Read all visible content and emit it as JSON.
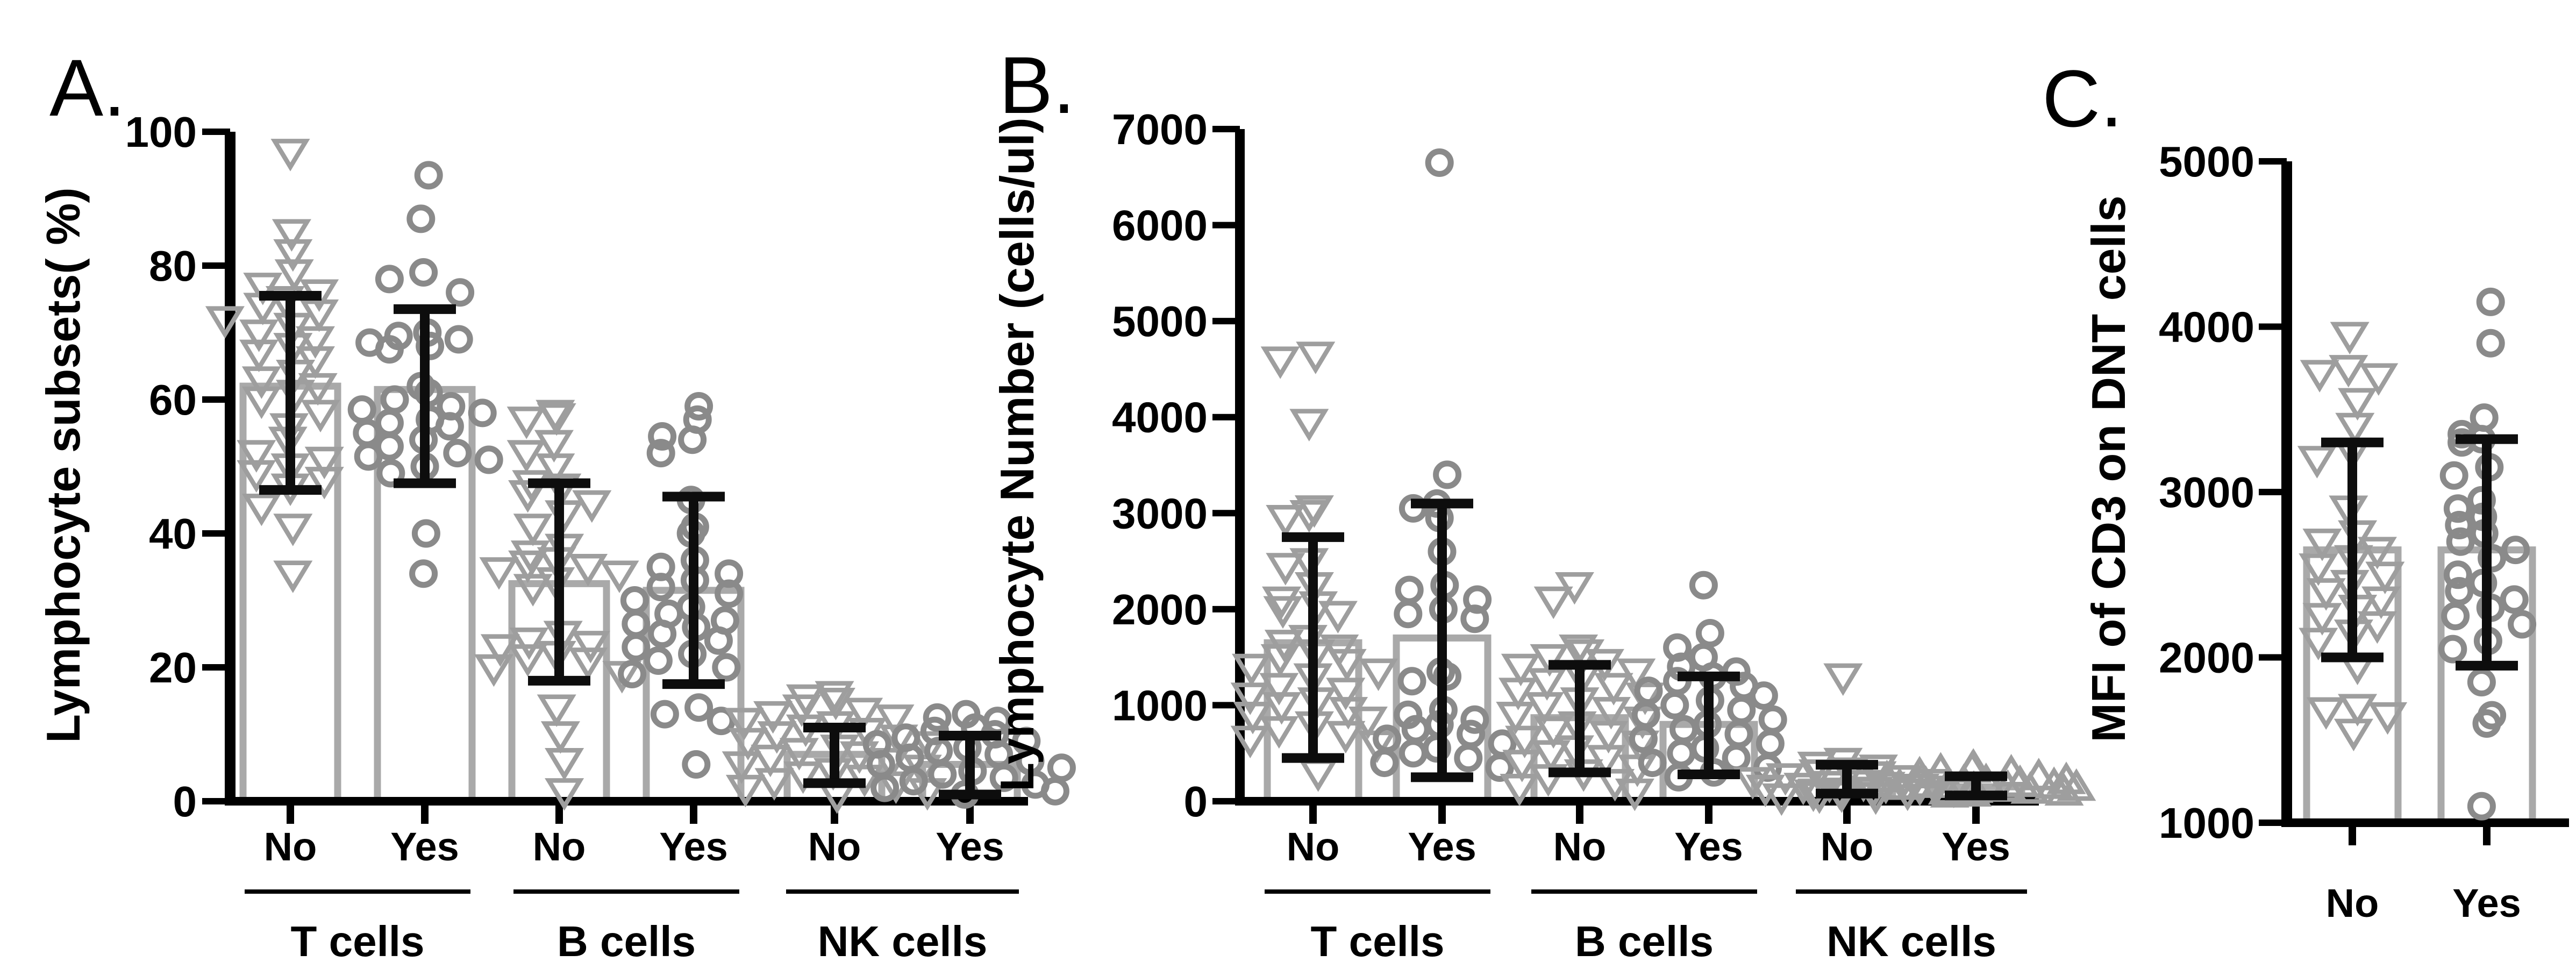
{
  "figure_title": "",
  "colors": {
    "background": "#ffffff",
    "axis": "#000000",
    "text": "#000000",
    "bar_outline": "#a9a9a9",
    "bar_fill": "#ffffff",
    "triangle_marker": "#9e9e9e",
    "circle_marker": "#8a8a8a",
    "error_bar": "#0d0d0d"
  },
  "chart_data": [
    {
      "panel_label": "A.",
      "type": "bar",
      "subtype": "bar-with-scatter-and-errorbars",
      "ylabel": "Lymphocyte subsets( %)",
      "xlabel": "",
      "ylim": [
        0,
        100
      ],
      "yticks": [
        0,
        20,
        40,
        60,
        80,
        100
      ],
      "grid": false,
      "legend": null,
      "groups": [
        {
          "label": "T cells",
          "columns": [
            {
              "x_label": "No",
              "marker": "triangle-down",
              "bar_mean": 62,
              "err_low": 46.5,
              "err_high": 75.5,
              "points": [
                97,
                85,
                82,
                79,
                77,
                76,
                75,
                74,
                73,
                72,
                71,
                70,
                69,
                68,
                67,
                66,
                64,
                63,
                62,
                61,
                60,
                58,
                56,
                54,
                52,
                51,
                50,
                49,
                48,
                47,
                44,
                41,
                34
              ]
            },
            {
              "x_label": "Yes",
              "marker": "circle",
              "bar_mean": 61.5,
              "err_low": 47.5,
              "err_high": 73.5,
              "points": [
                93.5,
                87,
                79,
                78,
                76,
                70,
                69.5,
                69,
                68.5,
                68,
                67.5,
                62,
                61,
                60,
                59,
                58.5,
                58,
                57,
                56.5,
                56,
                55,
                54,
                53,
                52,
                51.5,
                51,
                50,
                49,
                40,
                34
              ]
            }
          ]
        },
        {
          "label": "B cells",
          "columns": [
            {
              "x_label": "No",
              "marker": "triangle-down",
              "bar_mean": 32.5,
              "err_low": 18,
              "err_high": 47.5,
              "points": [
                58,
                57.5,
                57,
                53.5,
                52,
                50,
                47.5,
                47,
                46,
                44.5,
                43,
                41,
                38,
                37,
                36,
                35.5,
                35,
                34.5,
                34,
                33,
                32,
                25,
                24,
                23.5,
                23,
                22,
                21.5,
                21,
                20,
                19,
                14,
                10,
                6,
                1.5
              ]
            },
            {
              "x_label": "Yes",
              "marker": "circle",
              "bar_mean": 31.5,
              "err_low": 17.5,
              "err_high": 45.5,
              "points": [
                59,
                57,
                54.5,
                54,
                52,
                45,
                41,
                40,
                36,
                35,
                34,
                33,
                32,
                31,
                30,
                29,
                28,
                27,
                26.5,
                26,
                25,
                24,
                23,
                22,
                21,
                20,
                19,
                14,
                13,
                12,
                5.5
              ]
            }
          ]
        },
        {
          "label": "NK cells",
          "columns": [
            {
              "x_label": "No",
              "marker": "triangle-down",
              "bar_mean": 7,
              "err_low": 2.7,
              "err_high": 11,
              "points": [
                16,
                15.5,
                15,
                14,
                13.5,
                13,
                12.5,
                12,
                11.5,
                11,
                10.5,
                10,
                9.5,
                9,
                8.5,
                8,
                7.5,
                7,
                6.5,
                6,
                5.5,
                5,
                4.5,
                4,
                3.5,
                3,
                2.5,
                2,
                1.5,
                1
              ]
            },
            {
              "x_label": "Yes",
              "marker": "circle",
              "bar_mean": 5.5,
              "err_low": 1,
              "err_high": 9.8,
              "points": [
                13,
                12.5,
                12,
                11,
                10.5,
                10,
                9.5,
                9,
                8.5,
                8,
                7.5,
                7,
                6.5,
                6,
                5.5,
                5,
                4.5,
                4,
                3.5,
                3,
                2.5,
                2,
                1.5,
                1
              ]
            }
          ]
        }
      ]
    },
    {
      "panel_label": "B.",
      "type": "bar",
      "subtype": "bar-with-scatter-and-errorbars",
      "ylabel": "Lymphocyte Number (cells/ul)",
      "xlabel": "",
      "ylim": [
        0,
        7000
      ],
      "yticks": [
        0,
        1000,
        2000,
        3000,
        4000,
        5000,
        6000,
        7000
      ],
      "grid": false,
      "legend": null,
      "groups": [
        {
          "label": "T cells",
          "columns": [
            {
              "x_label": "No",
              "marker": "triangle-down",
              "bar_mean": 1650,
              "err_low": 450,
              "err_high": 2750,
              "points": [
                4650,
                4600,
                3950,
                3050,
                3000,
                2950,
                2500,
                2450,
                2250,
                2100,
                2050,
                2000,
                1950,
                1700,
                1650,
                1600,
                1550,
                1500,
                1450,
                1400,
                1350,
                1300,
                1200,
                1150,
                1100,
                1050,
                1000,
                950,
                900,
                850,
                800,
                750,
                700,
                650,
                600,
                300
              ]
            },
            {
              "x_label": "Yes",
              "marker": "circle",
              "bar_mean": 1700,
              "err_low": 250,
              "err_high": 3100,
              "points": [
                6650,
                3400,
                3100,
                3050,
                2950,
                2600,
                2250,
                2200,
                2100,
                2000,
                1950,
                1900,
                1350,
                1300,
                1250,
                950,
                900,
                850,
                800,
                750,
                700,
                650,
                600,
                550,
                500,
                450,
                400,
                350
              ]
            }
          ]
        },
        {
          "label": "B cells",
          "columns": [
            {
              "x_label": "No",
              "marker": "triangle-down",
              "bar_mean": 870,
              "err_low": 300,
              "err_high": 1420,
              "points": [
                2250,
                2100,
                1600,
                1550,
                1500,
                1450,
                1400,
                1350,
                1300,
                1250,
                1200,
                1150,
                1100,
                1050,
                1000,
                950,
                900,
                850,
                800,
                750,
                700,
                650,
                600,
                550,
                500,
                450,
                400,
                350,
                300,
                250,
                200,
                150,
                100
              ]
            },
            {
              "x_label": "Yes",
              "marker": "circle",
              "bar_mean": 800,
              "err_low": 280,
              "err_high": 1300,
              "points": [
                2250,
                1750,
                1600,
                1500,
                1400,
                1350,
                1300,
                1250,
                1200,
                1150,
                1100,
                1050,
                1000,
                950,
                900,
                850,
                800,
                750,
                700,
                650,
                600,
                550,
                500,
                450,
                400,
                350,
                300,
                250
              ]
            }
          ]
        },
        {
          "label": "NK cells",
          "columns": [
            {
              "x_label": "No",
              "marker": "triangle-down",
              "bar_mean": 200,
              "err_low": 80,
              "err_high": 380,
              "points": [
                1300,
                420,
                380,
                350,
                320,
                300,
                280,
                260,
                240,
                220,
                200,
                190,
                180,
                170,
                160,
                150,
                140,
                130,
                120,
                110,
                100,
                90,
                80,
                70,
                60,
                50
              ]
            },
            {
              "x_label": "Yes",
              "marker": "triangle-up",
              "bar_mean": 150,
              "err_low": 60,
              "err_high": 260,
              "points": [
                350,
                330,
                310,
                290,
                270,
                250,
                230,
                210,
                200,
                190,
                180,
                170,
                160,
                150,
                140,
                130,
                120,
                110,
                100,
                90,
                80,
                70
              ]
            }
          ]
        }
      ]
    },
    {
      "panel_label": "C.",
      "type": "bar",
      "subtype": "bar-with-scatter-and-errorbars",
      "ylabel": "MFI of CD3 on DNT  cells",
      "xlabel": "",
      "ylim": [
        1000,
        5000
      ],
      "yticks": [
        1000,
        2000,
        3000,
        4000,
        5000
      ],
      "grid": false,
      "legend": null,
      "groups": [
        {
          "label": "",
          "columns": [
            {
              "x_label": "No",
              "marker": "triangle-down",
              "bar_mean": 2650,
              "err_low": 2000,
              "err_high": 3300,
              "points": [
                3950,
                3750,
                3720,
                3700,
                3550,
                3400,
                3250,
                3200,
                2900,
                2750,
                2700,
                2650,
                2600,
                2550,
                2500,
                2450,
                2400,
                2350,
                2300,
                2250,
                2200,
                2150,
                2100,
                1950,
                1700,
                1680,
                1650,
                1550
              ]
            },
            {
              "x_label": "Yes",
              "marker": "circle",
              "bar_mean": 2650,
              "err_low": 1950,
              "err_high": 3320,
              "points": [
                4150,
                3900,
                3450,
                3350,
                3320,
                3300,
                3150,
                3100,
                2950,
                2900,
                2850,
                2800,
                2750,
                2700,
                2650,
                2600,
                2500,
                2450,
                2400,
                2350,
                2300,
                2250,
                2200,
                2100,
                2050,
                1850,
                1650,
                1600,
                1100
              ]
            }
          ]
        }
      ]
    }
  ]
}
